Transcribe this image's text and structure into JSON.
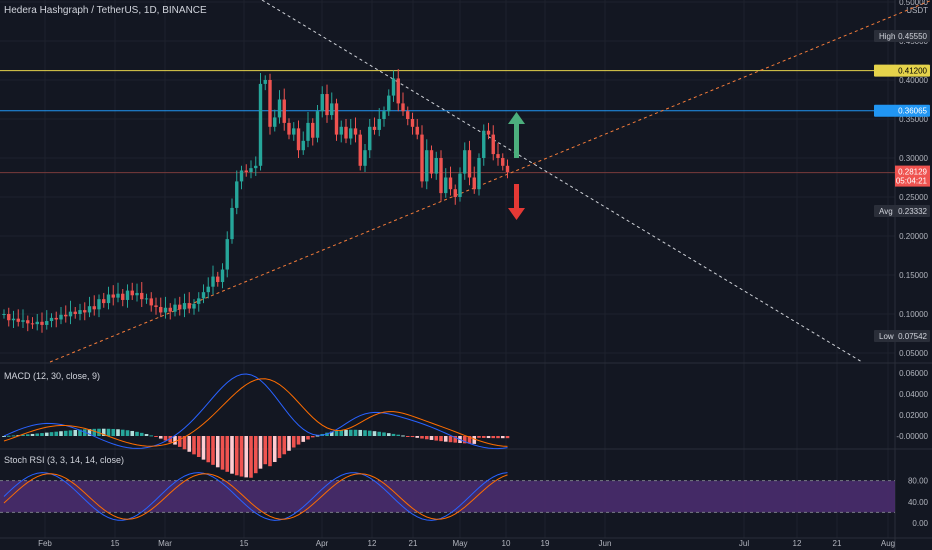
{
  "header": {
    "title": "Hedera Hashgraph / TetherUS, 1D, BINANCE"
  },
  "colors": {
    "background": "#131722",
    "grid": "#1e222d",
    "up": "#26a69a",
    "down": "#ef5350",
    "resistance": "#e5d34b",
    "level": "#2196f3",
    "trend_dashed": "#cfd2d8",
    "trend_support": "#f57c3a",
    "macd_line": "#2962ff",
    "signal_line": "#ff6d00",
    "rsi_band": "#4a2c6e",
    "arrow_up": "#4caf7d",
    "arrow_down": "#e53935"
  },
  "price_axis": {
    "currency": "USDT",
    "ticks": [
      "0.50000",
      "0.45000",
      "0.40000",
      "0.35000",
      "0.30000",
      "0.25000",
      "0.20000",
      "0.15000",
      "0.10000",
      "0.05000"
    ]
  },
  "labels": {
    "high": {
      "text": "High",
      "value": "0.45550"
    },
    "resistance": {
      "value": "0.41200"
    },
    "level": {
      "value": "0.36065"
    },
    "last": {
      "value": "0.28129",
      "countdown": "05:04:21"
    },
    "avg": {
      "text": "Avg",
      "value": "0.23332"
    },
    "low": {
      "text": "Low",
      "value": "0.07542"
    }
  },
  "macd": {
    "label": "MACD (12, 30, close, 9)",
    "ticks": [
      "0.06000",
      "0.04000",
      "0.02000",
      "-0.00000"
    ]
  },
  "stoch": {
    "label": "Stoch RSI (3, 3, 14, 14, close)",
    "ticks": [
      "80.00",
      "40.00",
      "0.00"
    ]
  },
  "time_axis": [
    "Feb",
    "15",
    "Mar",
    "15",
    "Apr",
    "12",
    "21",
    "May",
    "10",
    "19",
    "Jun",
    "Jul",
    "12",
    "21",
    "Aug"
  ],
  "chart_data": {
    "type": "candlestick",
    "series": [
      {
        "name": "price",
        "values_y": [
          0.1,
          0.092,
          0.094,
          0.09,
          0.092,
          0.088,
          0.087,
          0.09,
          0.086,
          0.091,
          0.095,
          0.093,
          0.099,
          0.097,
          0.103,
          0.1,
          0.105,
          0.102,
          0.11,
          0.106,
          0.119,
          0.114,
          0.125,
          0.121,
          0.126,
          0.118,
          0.13,
          0.124,
          0.127,
          0.119,
          0.12,
          0.111,
          0.109,
          0.102,
          0.108,
          0.103,
          0.112,
          0.106,
          0.114,
          0.107,
          0.113,
          0.12,
          0.128,
          0.135,
          0.148,
          0.141,
          0.157,
          0.196,
          0.236,
          0.27,
          0.284,
          0.282,
          0.287,
          0.29,
          0.395,
          0.4,
          0.34,
          0.352,
          0.375,
          0.345,
          0.33,
          0.338,
          0.31,
          0.322,
          0.345,
          0.326,
          0.36,
          0.382,
          0.355,
          0.37,
          0.33,
          0.34,
          0.325,
          0.338,
          0.33,
          0.29,
          0.31,
          0.34,
          0.336,
          0.35,
          0.36,
          0.38,
          0.402,
          0.37,
          0.36,
          0.35,
          0.34,
          0.33,
          0.27,
          0.31,
          0.28,
          0.3,
          0.255,
          0.275,
          0.26,
          0.25,
          0.28,
          0.31,
          0.275,
          0.26,
          0.3,
          0.335,
          0.33,
          0.305,
          0.3,
          0.29,
          0.282
        ]
      }
    ],
    "ylim": [
      0.05,
      0.5
    ]
  }
}
